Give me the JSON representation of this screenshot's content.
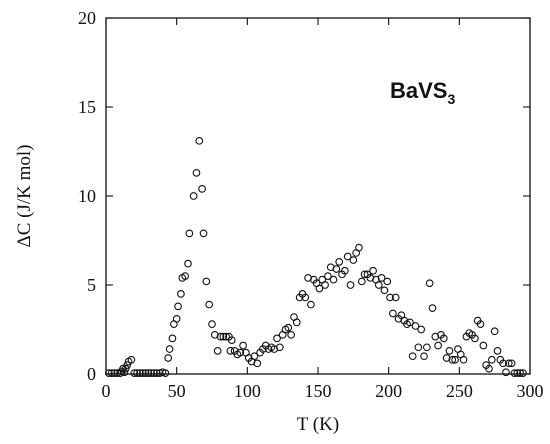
{
  "chart_data": {
    "type": "scatter",
    "title": "",
    "xlabel": "T (K)",
    "ylabel": "ΔC (J/K mol)",
    "xlim": [
      0,
      300
    ],
    "ylim": [
      0,
      20
    ],
    "xticks": [
      0,
      50,
      100,
      150,
      200,
      250,
      300
    ],
    "yticks": [
      0,
      5,
      10,
      15,
      20
    ],
    "annotation": {
      "text": "BaVS",
      "subscript": "3"
    },
    "series": [
      {
        "marker": "open-circle",
        "points": [
          [
            2,
            0.05
          ],
          [
            4,
            0.05
          ],
          [
            6,
            0.05
          ],
          [
            8,
            0.05
          ],
          [
            10,
            0.05
          ],
          [
            11,
            0.15
          ],
          [
            12,
            0.3
          ],
          [
            13,
            0.1
          ],
          [
            14,
            0.3
          ],
          [
            15,
            0.5
          ],
          [
            16,
            0.7
          ],
          [
            18,
            0.8
          ],
          [
            20,
            0.05
          ],
          [
            22,
            0.05
          ],
          [
            24,
            0.05
          ],
          [
            26,
            0.05
          ],
          [
            28,
            0.05
          ],
          [
            30,
            0.05
          ],
          [
            32,
            0.05
          ],
          [
            34,
            0.05
          ],
          [
            36,
            0.05
          ],
          [
            38,
            0.05
          ],
          [
            40,
            0.1
          ],
          [
            42,
            0.05
          ],
          [
            44,
            0.9
          ],
          [
            45,
            1.4
          ],
          [
            47,
            2.0
          ],
          [
            48,
            2.8
          ],
          [
            50,
            3.1
          ],
          [
            51,
            3.8
          ],
          [
            53,
            4.5
          ],
          [
            54,
            5.4
          ],
          [
            56,
            5.5
          ],
          [
            58,
            6.2
          ],
          [
            59,
            7.9
          ],
          [
            62,
            10.0
          ],
          [
            64,
            11.3
          ],
          [
            66,
            13.1
          ],
          [
            68,
            10.4
          ],
          [
            69,
            7.9
          ],
          [
            71,
            5.2
          ],
          [
            73,
            3.9
          ],
          [
            75,
            2.8
          ],
          [
            77,
            2.2
          ],
          [
            79,
            1.3
          ],
          [
            81,
            2.1
          ],
          [
            83,
            2.1
          ],
          [
            85,
            2.1
          ],
          [
            87,
            2.1
          ],
          [
            88,
            1.3
          ],
          [
            89,
            1.9
          ],
          [
            91,
            1.3
          ],
          [
            93,
            1.1
          ],
          [
            95,
            1.2
          ],
          [
            97,
            1.6
          ],
          [
            99,
            1.2
          ],
          [
            101,
            0.9
          ],
          [
            103,
            0.7
          ],
          [
            105,
            1.0
          ],
          [
            107,
            0.6
          ],
          [
            109,
            1.2
          ],
          [
            111,
            1.4
          ],
          [
            113,
            1.6
          ],
          [
            115,
            1.4
          ],
          [
            117,
            1.5
          ],
          [
            119,
            1.4
          ],
          [
            121,
            2.0
          ],
          [
            123,
            1.5
          ],
          [
            125,
            2.2
          ],
          [
            127,
            2.5
          ],
          [
            129,
            2.6
          ],
          [
            131,
            2.2
          ],
          [
            133,
            3.2
          ],
          [
            135,
            2.9
          ],
          [
            137,
            4.3
          ],
          [
            139,
            4.5
          ],
          [
            141,
            4.3
          ],
          [
            143,
            5.4
          ],
          [
            145,
            3.9
          ],
          [
            147,
            5.3
          ],
          [
            149,
            5.1
          ],
          [
            151,
            4.8
          ],
          [
            153,
            5.3
          ],
          [
            155,
            5.0
          ],
          [
            157,
            5.5
          ],
          [
            159,
            6.0
          ],
          [
            161,
            5.3
          ],
          [
            163,
            5.9
          ],
          [
            165,
            6.3
          ],
          [
            167,
            5.6
          ],
          [
            169,
            5.8
          ],
          [
            171,
            6.6
          ],
          [
            173,
            5.0
          ],
          [
            175,
            6.4
          ],
          [
            177,
            6.8
          ],
          [
            179,
            7.1
          ],
          [
            181,
            5.2
          ],
          [
            183,
            5.6
          ],
          [
            185,
            5.6
          ],
          [
            187,
            5.4
          ],
          [
            189,
            5.8
          ],
          [
            191,
            5.3
          ],
          [
            193,
            5.0
          ],
          [
            195,
            5.4
          ],
          [
            197,
            4.7
          ],
          [
            199,
            5.2
          ],
          [
            201,
            4.3
          ],
          [
            203,
            3.4
          ],
          [
            205,
            4.3
          ],
          [
            207,
            3.1
          ],
          [
            209,
            3.3
          ],
          [
            211,
            3.0
          ],
          [
            213,
            2.8
          ],
          [
            215,
            2.9
          ],
          [
            217,
            1.0
          ],
          [
            219,
            2.7
          ],
          [
            221,
            1.5
          ],
          [
            223,
            2.5
          ],
          [
            225,
            1.0
          ],
          [
            227,
            1.5
          ],
          [
            229,
            5.1
          ],
          [
            231,
            3.7
          ],
          [
            233,
            2.1
          ],
          [
            235,
            1.6
          ],
          [
            237,
            2.2
          ],
          [
            239,
            2.0
          ],
          [
            241,
            0.9
          ],
          [
            243,
            1.3
          ],
          [
            245,
            0.8
          ],
          [
            247,
            0.8
          ],
          [
            249,
            1.4
          ],
          [
            251,
            1.1
          ],
          [
            253,
            0.8
          ],
          [
            255,
            2.1
          ],
          [
            257,
            2.3
          ],
          [
            259,
            2.2
          ],
          [
            261,
            2.0
          ],
          [
            263,
            3.0
          ],
          [
            265,
            2.8
          ],
          [
            267,
            1.6
          ],
          [
            269,
            0.5
          ],
          [
            271,
            0.3
          ],
          [
            273,
            0.8
          ],
          [
            275,
            2.4
          ],
          [
            277,
            1.3
          ],
          [
            279,
            0.8
          ],
          [
            281,
            0.6
          ],
          [
            283,
            0.1
          ],
          [
            285,
            0.6
          ],
          [
            287,
            0.6
          ],
          [
            289,
            0.05
          ],
          [
            291,
            0.05
          ],
          [
            293,
            0.05
          ],
          [
            295,
            0.05
          ]
        ]
      }
    ]
  }
}
